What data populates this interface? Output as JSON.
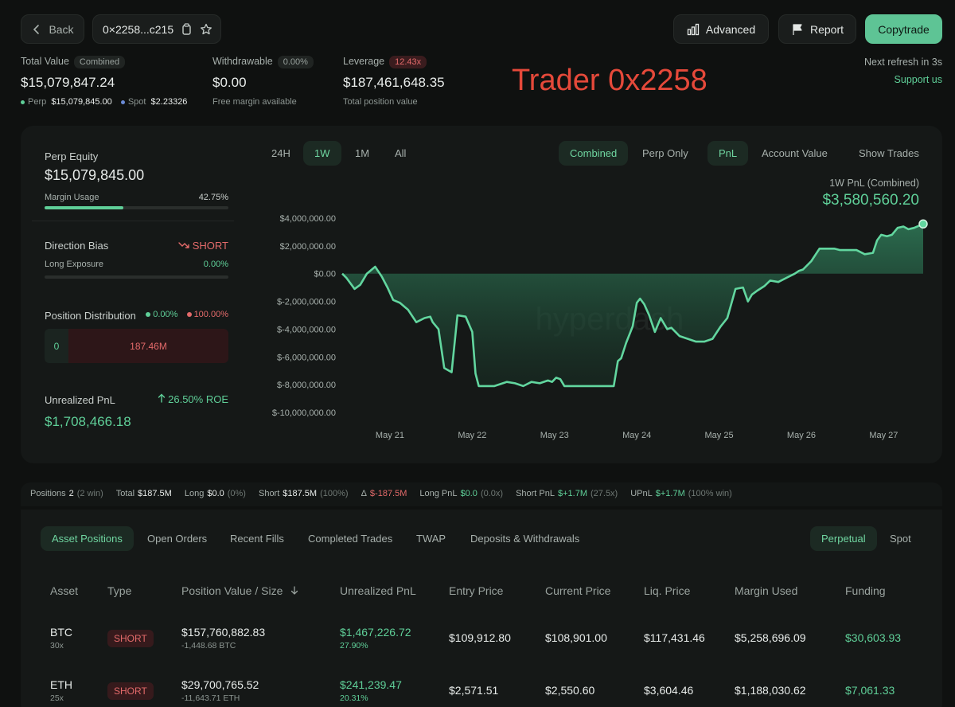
{
  "header": {
    "back_label": "Back",
    "address": "0×2258...c215",
    "advanced_label": "Advanced",
    "report_label": "Report",
    "copytrade_label": "Copytrade",
    "refresh_text": "Next refresh in 3s",
    "support_label": "Support us",
    "trader_title": "Trader 0x2258"
  },
  "summary": {
    "total_value_label": "Total Value",
    "total_value_chip": "Combined",
    "total_value": "$15,079,847.24",
    "perp_label": "Perp",
    "perp_value": "$15,079,845.00",
    "spot_label": "Spot",
    "spot_value": "$2.23326",
    "withdrawable_label": "Withdrawable",
    "withdrawable_chip": "0.00%",
    "withdrawable_value": "$0.00",
    "withdrawable_sub": "Free margin available",
    "leverage_label": "Leverage",
    "leverage_chip": "12.43x",
    "leverage_value": "$187,461,648.35",
    "leverage_sub": "Total position value"
  },
  "left_panel": {
    "perp_equity_label": "Perp Equity",
    "perp_equity_value": "$15,079,845.00",
    "margin_usage_label": "Margin Usage",
    "margin_usage_value": "42.75%",
    "margin_usage_fraction": 0.4275,
    "direction_bias_label": "Direction Bias",
    "direction_bias_value": "SHORT",
    "long_exposure_label": "Long Exposure",
    "long_exposure_value": "0.00%",
    "position_dist_label": "Position Distribution",
    "dist_long_pct": "0.00%",
    "dist_short_pct": "100.00%",
    "dist_long_value": "0",
    "dist_short_value": "187.46M",
    "unrealized_label": "Unrealized PnL",
    "roe_value": "26.50% ROE",
    "unrealized_value": "$1,708,466.18"
  },
  "chart_controls": {
    "ranges": [
      "24H",
      "1W",
      "1M",
      "All"
    ],
    "active_range": "1W",
    "modes": [
      "Combined",
      "Perp Only"
    ],
    "views": [
      "PnL",
      "Account Value"
    ],
    "show_trades": "Show Trades",
    "pnl_caption": "1W PnL (Combined)",
    "pnl_value": "$3,580,560.20",
    "watermark": "hyperdash"
  },
  "chart_data": {
    "type": "area",
    "title": "",
    "xlabel": "",
    "ylabel": "",
    "ylim": [
      -10000000,
      4000000
    ],
    "y_ticks": [
      "$4,000,000.00",
      "$2,000,000.00",
      "$0.00",
      "$-2,000,000.00",
      "$-4,000,000.00",
      "$-6,000,000.00",
      "$-8,000,000.00",
      "$-10,000,000.00"
    ],
    "y_tick_values": [
      4000000,
      2000000,
      0,
      -2000000,
      -4000000,
      -6000000,
      -8000000,
      -10000000
    ],
    "x_ticks": [
      "May 21",
      "May 22",
      "May 23",
      "May 24",
      "May 25",
      "May 26",
      "May 27"
    ],
    "x_tick_values": [
      0.58,
      1.58,
      2.58,
      3.58,
      4.58,
      5.58,
      6.58
    ],
    "xlim": [
      0,
      7.06
    ],
    "x": [
      0.0,
      0.05,
      0.15,
      0.22,
      0.3,
      0.4,
      0.48,
      0.55,
      0.62,
      0.7,
      0.8,
      0.9,
      1.0,
      1.07,
      1.1,
      1.17,
      1.24,
      1.33,
      1.4,
      1.5,
      1.58,
      1.62,
      1.66,
      1.7,
      1.74,
      1.79,
      1.85,
      1.9,
      2.0,
      2.1,
      2.2,
      2.3,
      2.4,
      2.5,
      2.55,
      2.6,
      2.65,
      2.7,
      2.75,
      2.8,
      2.85,
      2.92,
      3.0,
      3.1,
      3.2,
      3.3,
      3.35,
      3.39,
      3.45,
      3.53,
      3.58,
      3.62,
      3.67,
      3.73,
      3.8,
      3.87,
      3.95,
      4.0,
      4.05,
      4.1,
      4.2,
      4.3,
      4.4,
      4.5,
      4.6,
      4.68,
      4.78,
      4.87,
      4.93,
      4.98,
      5.05,
      5.13,
      5.2,
      5.3,
      5.4,
      5.5,
      5.55,
      5.6,
      5.7,
      5.8,
      5.9,
      5.98,
      6.05,
      6.15,
      6.25,
      6.35,
      6.45,
      6.5,
      6.55,
      6.62,
      6.68,
      6.75,
      6.82,
      6.88,
      6.95,
      7.06
    ],
    "values": [
      0,
      -300000,
      -1100000,
      -800000,
      0,
      500000,
      -200000,
      -1000000,
      -1900000,
      -2100000,
      -2600000,
      -3500000,
      -3200000,
      -3100000,
      -3500000,
      -4000000,
      -6800000,
      -7100000,
      -3000000,
      -3100000,
      -4200000,
      -7200000,
      -8100000,
      -8100000,
      -8100000,
      -8100000,
      -8100000,
      -8000000,
      -7800000,
      -7900000,
      -8100000,
      -7800000,
      -7900000,
      -7700000,
      -7800000,
      -7500000,
      -7600000,
      -8100000,
      -8100000,
      -8100000,
      -8100000,
      -8100000,
      -8100000,
      -8100000,
      -8100000,
      -8100000,
      -6300000,
      -6100000,
      -5000000,
      -3800000,
      -2100000,
      -1800000,
      -2200000,
      -3000000,
      -4200000,
      -3200000,
      -4000000,
      -3900000,
      -4200000,
      -4500000,
      -4700000,
      -4900000,
      -4900000,
      -4700000,
      -3800000,
      -3200000,
      -1100000,
      -1000000,
      -2000000,
      -1500000,
      -1200000,
      -900000,
      -500000,
      -600000,
      -300000,
      0,
      200000,
      300000,
      900000,
      1800000,
      1800000,
      1800000,
      1700000,
      1700000,
      1700000,
      1400000,
      1500000,
      2400000,
      2800000,
      2700000,
      2800000,
      3300000,
      3400000,
      3200000,
      3300000,
      3580560
    ]
  },
  "stats_bar": [
    {
      "label": "Positions",
      "value": "2",
      "extra": "(2 win)",
      "color": "default"
    },
    {
      "label": "Total",
      "value": "$187.5M",
      "extra": "",
      "color": "default"
    },
    {
      "label": "Long",
      "value": "$0.0",
      "extra": "(0%)",
      "color": "default"
    },
    {
      "label": "Short",
      "value": "$187.5M",
      "extra": "(100%)",
      "color": "default"
    },
    {
      "label": "Δ",
      "value": "$-187.5M",
      "extra": "",
      "color": "red"
    },
    {
      "label": "Long PnL",
      "value": "$0.0",
      "extra": "(0.0x)",
      "color": "green"
    },
    {
      "label": "Short PnL",
      "value": "$+1.7M",
      "extra": "(27.5x)",
      "color": "green"
    },
    {
      "label": "UPnL",
      "value": "$+1.7M",
      "extra": "(100% win)",
      "color": "green"
    }
  ],
  "bottom_tabs": [
    "Asset Positions",
    "Open Orders",
    "Recent Fills",
    "Completed Trades",
    "TWAP",
    "Deposits & Withdrawals"
  ],
  "market_tabs": [
    "Perpetual",
    "Spot"
  ],
  "table": {
    "headers": [
      "Asset",
      "Type",
      "Position Value / Size",
      "Unrealized PnL",
      "Entry Price",
      "Current Price",
      "Liq. Price",
      "Margin Used",
      "Funding"
    ],
    "sort_icon": "arrow-down-icon",
    "rows": [
      {
        "asset": "BTC",
        "leverage": "30x",
        "type": "SHORT",
        "value": "$157,760,882.83",
        "size": "-1,448.68 BTC",
        "upnl": "$1,467,226.72",
        "upnl_pct": "27.90%",
        "entry": "$109,912.80",
        "current": "$108,901.00",
        "liq": "$117,431.46",
        "margin": "$5,258,696.09",
        "funding": "$30,603.93"
      },
      {
        "asset": "ETH",
        "leverage": "25x",
        "type": "SHORT",
        "value": "$29,700,765.52",
        "size": "-11,643.71 ETH",
        "upnl": "$241,239.47",
        "upnl_pct": "20.31%",
        "entry": "$2,571.51",
        "current": "$2,550.60",
        "liq": "$3,604.46",
        "margin": "$1,188,030.62",
        "funding": "$7,061.33"
      }
    ]
  },
  "colors": {
    "accent_green": "#5fcf98",
    "short_red": "#e36a6a",
    "copytrade_bg": "#5ec495",
    "title_red": "#e5493a"
  }
}
